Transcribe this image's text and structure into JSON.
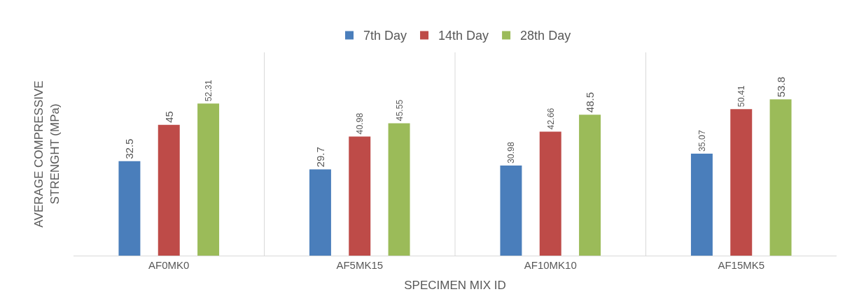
{
  "chart_data": {
    "type": "bar",
    "xlabel": "SPECIMEN MIX ID",
    "ylabel": "AVERAGE COMPRESSIVE STRENGHT (MPa)",
    "categories": [
      "AF0MK0",
      "AF5MK15",
      "AF10MK10",
      "AF15MK5"
    ],
    "series": [
      {
        "name": "7th Day",
        "color": "#4a7ebb",
        "values": [
          32.5,
          29.7,
          30.98,
          35.07
        ]
      },
      {
        "name": "14th Day",
        "color": "#be4b48",
        "values": [
          45,
          40.98,
          42.66,
          50.41
        ]
      },
      {
        "name": "28th Day",
        "color": "#9bbb59",
        "values": [
          52.31,
          45.55,
          48.5,
          53.8
        ]
      }
    ],
    "data_labels": true,
    "grid": "x",
    "legend": "top",
    "tick_labels": "x"
  }
}
